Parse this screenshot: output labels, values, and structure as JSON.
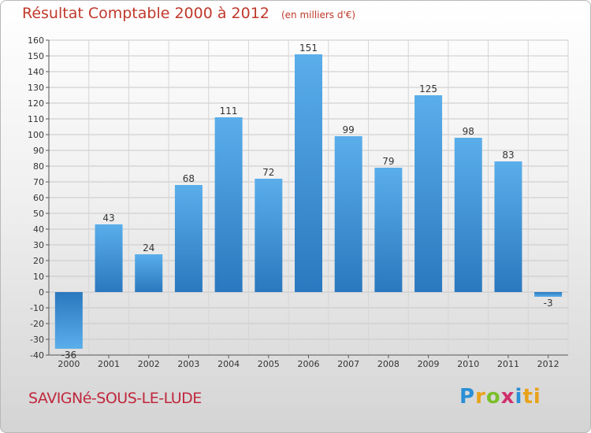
{
  "chart_data": {
    "type": "bar",
    "title": "Résultat Comptable 2000 à 2012",
    "subtitle": "(en milliers d'€)",
    "categories": [
      "2000",
      "2001",
      "2002",
      "2003",
      "2004",
      "2005",
      "2006",
      "2007",
      "2008",
      "2009",
      "2010",
      "2011",
      "2012"
    ],
    "values": [
      -36,
      43,
      24,
      68,
      111,
      72,
      151,
      99,
      79,
      125,
      98,
      83,
      -3
    ],
    "ylim": [
      -40,
      160
    ],
    "yticks": [
      -40,
      -30,
      -20,
      -10,
      0,
      10,
      20,
      30,
      40,
      50,
      60,
      70,
      80,
      90,
      100,
      110,
      120,
      130,
      140,
      150,
      160
    ],
    "xlabel": "",
    "ylabel": "",
    "grid": true,
    "bar_color": "#3a8fd4"
  },
  "footer": {
    "commune": "SAVIGNé-SOUS-LE-LUDE",
    "logo_letters": [
      "P",
      "r",
      "o",
      "x",
      "i",
      "ti"
    ]
  }
}
